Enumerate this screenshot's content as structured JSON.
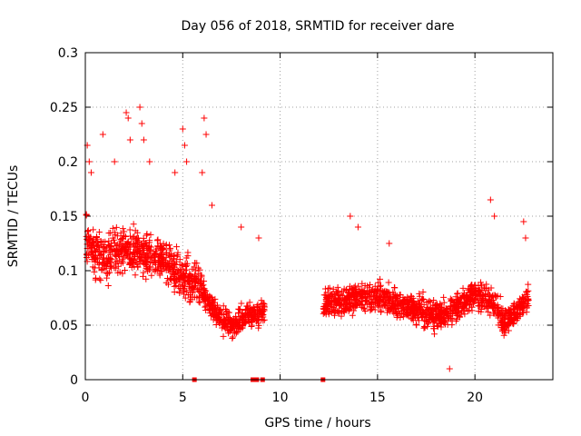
{
  "chart_data": {
    "type": "scatter",
    "title": "Day 056 of 2018, SRMTID for receiver dare",
    "xlabel": "GPS time / hours",
    "ylabel": "SRMTID / TECUs",
    "xlim": [
      0,
      24
    ],
    "ylim": [
      0,
      0.3
    ],
    "grid": true,
    "marker": "+",
    "color": "#ff0000",
    "x_ticks": [
      0,
      5,
      10,
      15,
      20
    ],
    "x_tick_labels": [
      "0",
      "5",
      "10",
      "15",
      "20"
    ],
    "y_ticks": [
      0,
      0.05,
      0.1,
      0.15,
      0.2,
      0.25,
      0.3
    ],
    "y_tick_labels": [
      "0",
      "0.05",
      "0.1",
      "0.15",
      "0.2",
      "0.25",
      "0.3"
    ],
    "zero_points_x": [
      5.6,
      8.6,
      8.8,
      9.1,
      12.2
    ],
    "series": [
      {
        "name": "SRMTID",
        "segments": [
          {
            "x_start": 0.0,
            "x_end": 6.0,
            "centers": [
              [
                0.0,
                0.13
              ],
              [
                0.5,
                0.12
              ],
              [
                1.0,
                0.11
              ],
              [
                1.5,
                0.115
              ],
              [
                2.0,
                0.12
              ],
              [
                2.5,
                0.12
              ],
              [
                3.0,
                0.115
              ],
              [
                3.5,
                0.11
              ],
              [
                4.0,
                0.11
              ],
              [
                4.5,
                0.1
              ],
              [
                5.0,
                0.095
              ],
              [
                5.5,
                0.09
              ],
              [
                6.0,
                0.085
              ]
            ],
            "spread": 0.035
          },
          {
            "x_start": 6.0,
            "x_end": 9.2,
            "centers": [
              [
                6.0,
                0.08
              ],
              [
                6.5,
                0.065
              ],
              [
                7.0,
                0.055
              ],
              [
                7.5,
                0.05
              ],
              [
                8.0,
                0.055
              ],
              [
                8.5,
                0.06
              ],
              [
                9.0,
                0.06
              ],
              [
                9.2,
                0.065
              ]
            ],
            "spread": 0.02
          },
          {
            "x_start": 12.2,
            "x_end": 17.0,
            "centers": [
              [
                12.2,
                0.07
              ],
              [
                13.0,
                0.072
              ],
              [
                14.0,
                0.075
              ],
              [
                15.0,
                0.075
              ],
              [
                16.0,
                0.07
              ],
              [
                17.0,
                0.065
              ]
            ],
            "spread": 0.022
          },
          {
            "x_start": 17.0,
            "x_end": 22.8,
            "centers": [
              [
                17.0,
                0.065
              ],
              [
                18.0,
                0.058
              ],
              [
                19.0,
                0.065
              ],
              [
                20.0,
                0.08
              ],
              [
                21.0,
                0.07
              ],
              [
                21.5,
                0.05
              ],
              [
                22.0,
                0.06
              ],
              [
                22.8,
                0.075
              ]
            ],
            "spread": 0.022
          }
        ],
        "outliers": [
          [
            0.1,
            0.215
          ],
          [
            0.2,
            0.2
          ],
          [
            0.3,
            0.19
          ],
          [
            0.9,
            0.225
          ],
          [
            1.5,
            0.2
          ],
          [
            2.1,
            0.245
          ],
          [
            2.2,
            0.24
          ],
          [
            2.3,
            0.22
          ],
          [
            2.8,
            0.25
          ],
          [
            2.9,
            0.235
          ],
          [
            3.0,
            0.22
          ],
          [
            3.3,
            0.2
          ],
          [
            4.6,
            0.19
          ],
          [
            5.0,
            0.23
          ],
          [
            5.1,
            0.215
          ],
          [
            5.2,
            0.2
          ],
          [
            6.1,
            0.24
          ],
          [
            6.2,
            0.225
          ],
          [
            6.0,
            0.19
          ],
          [
            6.5,
            0.16
          ],
          [
            8.0,
            0.14
          ],
          [
            8.9,
            0.13
          ],
          [
            13.6,
            0.15
          ],
          [
            14.0,
            0.14
          ],
          [
            15.6,
            0.125
          ],
          [
            18.7,
            0.01
          ],
          [
            20.8,
            0.165
          ],
          [
            21.0,
            0.15
          ],
          [
            22.5,
            0.145
          ],
          [
            22.6,
            0.13
          ]
        ]
      }
    ]
  }
}
